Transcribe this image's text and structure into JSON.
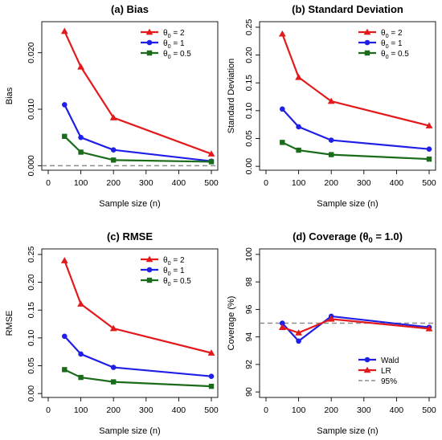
{
  "colors": {
    "red": "#e31a1c",
    "blue": "#1f1fe6",
    "green": "#1a6b1a",
    "refline": "#8c8c8c"
  },
  "chart_data": [
    {
      "type": "line",
      "title": "(a) Bias",
      "xlabel": "Sample size (n)",
      "ylabel": "Bias",
      "x": [
        50,
        100,
        200,
        500
      ],
      "xticks": [
        "0",
        "100",
        "200",
        "300",
        "400",
        "500"
      ],
      "yticks": [
        "0.000",
        "0.010",
        "0.020"
      ],
      "xlim": [
        0,
        500
      ],
      "ylim": [
        -0.0008,
        0.0255
      ],
      "legend_position": "top-right",
      "reference_line": 0,
      "series": [
        {
          "name": "θ0 = 2",
          "name_base": "θ",
          "name_sub": "0",
          "name_rest": " = 2",
          "color": "red",
          "marker": "triangle",
          "values": [
            0.0238,
            0.0175,
            0.0085,
            0.0021
          ]
        },
        {
          "name": "θ0 = 1",
          "name_base": "θ",
          "name_sub": "0",
          "name_rest": " = 1",
          "color": "blue",
          "marker": "circle",
          "values": [
            0.0108,
            0.005,
            0.0028,
            0.0008
          ]
        },
        {
          "name": "θ0 = 0.5",
          "name_base": "θ",
          "name_sub": "0",
          "name_rest": " = 0.5",
          "color": "green",
          "marker": "square",
          "values": [
            0.0052,
            0.0024,
            0.001,
            0.0007
          ]
        }
      ]
    },
    {
      "type": "line",
      "title": "(b) Standard Deviation",
      "xlabel": "Sample size (n)",
      "ylabel": "Standard Deviation",
      "x": [
        50,
        100,
        200,
        500
      ],
      "xticks": [
        "0",
        "100",
        "200",
        "300",
        "400",
        "500"
      ],
      "yticks": [
        "0.00",
        "0.05",
        "0.10",
        "0.15",
        "0.20",
        "0.25"
      ],
      "xlim": [
        0,
        500
      ],
      "ylim": [
        -0.007,
        0.26
      ],
      "legend_position": "top-right",
      "series": [
        {
          "name": "θ0 = 2",
          "name_base": "θ",
          "name_sub": "0",
          "name_rest": " = 2",
          "color": "red",
          "marker": "triangle",
          "values": [
            0.238,
            0.16,
            0.117,
            0.073
          ]
        },
        {
          "name": "θ0 = 1",
          "name_base": "θ",
          "name_sub": "0",
          "name_rest": " = 1",
          "color": "blue",
          "marker": "circle",
          "values": [
            0.103,
            0.071,
            0.047,
            0.031
          ]
        },
        {
          "name": "θ0 = 0.5",
          "name_base": "θ",
          "name_sub": "0",
          "name_rest": " = 0.5",
          "color": "green",
          "marker": "square",
          "values": [
            0.043,
            0.029,
            0.021,
            0.013
          ]
        }
      ]
    },
    {
      "type": "line",
      "title": "(c) RMSE",
      "xlabel": "Sample size (n)",
      "ylabel": "RMSE",
      "x": [
        50,
        100,
        200,
        500
      ],
      "xticks": [
        "0",
        "100",
        "200",
        "300",
        "400",
        "500"
      ],
      "yticks": [
        "0.00",
        "0.05",
        "0.10",
        "0.15",
        "0.20",
        "0.25"
      ],
      "xlim": [
        0,
        500
      ],
      "ylim": [
        -0.007,
        0.26
      ],
      "legend_position": "top-right",
      "series": [
        {
          "name": "θ0 = 2",
          "name_base": "θ",
          "name_sub": "0",
          "name_rest": " = 2",
          "color": "red",
          "marker": "triangle",
          "values": [
            0.239,
            0.161,
            0.117,
            0.073
          ]
        },
        {
          "name": "θ0 = 1",
          "name_base": "θ",
          "name_sub": "0",
          "name_rest": " = 1",
          "color": "blue",
          "marker": "circle",
          "values": [
            0.103,
            0.071,
            0.047,
            0.031
          ]
        },
        {
          "name": "θ0 = 0.5",
          "name_base": "θ",
          "name_sub": "0",
          "name_rest": " = 0.5",
          "color": "green",
          "marker": "square",
          "values": [
            0.043,
            0.029,
            0.021,
            0.013
          ]
        }
      ]
    },
    {
      "type": "line",
      "title": "(d) Coverage (θ0 = 1.0)",
      "title_base": "(d) Coverage (θ",
      "title_sub": "0",
      "title_rest": " = 1.0)",
      "xlabel": "Sample size (n)",
      "ylabel": "Coverage (%)",
      "x": [
        50,
        100,
        200,
        500
      ],
      "xticks": [
        "0",
        "100",
        "200",
        "300",
        "400",
        "500"
      ],
      "yticks": [
        "90",
        "92",
        "94",
        "96",
        "98",
        "100"
      ],
      "xlim": [
        0,
        500
      ],
      "ylim": [
        89.6,
        100.4
      ],
      "legend_position": "bottom-right",
      "reference_line": 95,
      "reference_label": "95%",
      "series": [
        {
          "name": "Wald",
          "color": "blue",
          "marker": "circle",
          "values": [
            95.0,
            93.7,
            95.5,
            94.7
          ]
        },
        {
          "name": "LR",
          "color": "red",
          "marker": "triangle",
          "values": [
            94.7,
            94.3,
            95.3,
            94.6
          ]
        }
      ]
    }
  ]
}
